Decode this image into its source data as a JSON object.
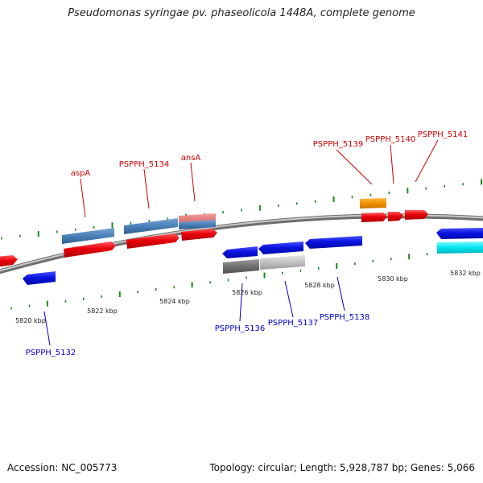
{
  "title": "Pseudomonas syringae pv. phaseolicola 1448A, complete genome",
  "footer": {
    "accession": "Accession: NC_005773",
    "stats": "Topology: circular; Length: 5,928,787 bp; Genes: 5,066"
  },
  "kbp_labels": [
    "5820 kbp",
    "5822 kbp",
    "5824 kbp",
    "5826 kbp",
    "5828 kbp",
    "5830 kbp",
    "5832 kbp"
  ],
  "gene_labels": {
    "aspA": "aspA",
    "pspph_5134": "PSPPH_5134",
    "ansA": "ansA",
    "pspph_5139": "PSPPH_5139",
    "pspph_5140": "PSPPH_5140",
    "pspph_5141": "PSPPH_5141",
    "pspph_5132": "PSPPH_5132",
    "pspph_5136": "PSPPH_5136",
    "pspph_5137": "PSPPH_5137",
    "pspph_5138": "PSPPH_5138"
  },
  "colors": {
    "forward_label": "#cc0000",
    "reverse_label": "#0000cc",
    "cds_red": "#e8000b",
    "cds_blue": "#0a14e0",
    "steel_blue": "#4a7fb8",
    "orange": "#f39200",
    "cyan": "#00e5ee",
    "dark_gray": "#707070",
    "light_gray": "#c0c0c0",
    "backbone": "#8a8a8a",
    "tick_green": "#1a8a1a"
  }
}
